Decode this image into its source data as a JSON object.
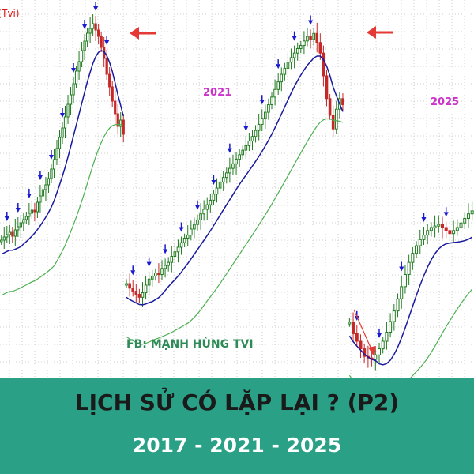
{
  "chart_data": [
    {
      "type": "candlestick",
      "period_label": "",
      "top_left_text": "g (Tvi)",
      "grid": true,
      "series": [
        {
          "name": "",
          "kind": "ohlc",
          "values": [
            296,
            300,
            303,
            306,
            301,
            309,
            313,
            318,
            322,
            326,
            330,
            334,
            332,
            344,
            352,
            360,
            366,
            374,
            386,
            398,
            412,
            426,
            438,
            452,
            468,
            480,
            494,
            510,
            522,
            536,
            548,
            558,
            564,
            570,
            562,
            554,
            540,
            526,
            506,
            490,
            472,
            456,
            440,
            448,
            430
          ]
        },
        {
          "name": "",
          "kind": "ma-short",
          "color": "#1a1aa0"
        },
        {
          "name": "",
          "kind": "ma-long",
          "color": "#4caf50"
        }
      ],
      "annotations": [
        "peak arrow",
        "red left arrow"
      ]
    },
    {
      "type": "candlestick",
      "period_label": "2021",
      "grid": true,
      "series": [
        {
          "name": "",
          "kind": "ohlc",
          "values": [
            226,
            220,
            216,
            212,
            208,
            214,
            224,
            232,
            236,
            240,
            238,
            246,
            250,
            254,
            262,
            268,
            274,
            280,
            286,
            290,
            298,
            304,
            310,
            318,
            324,
            330,
            336,
            344,
            352,
            360,
            366,
            372,
            378,
            384,
            390,
            396,
            402,
            408,
            414,
            420,
            428,
            436,
            444,
            452,
            462,
            472,
            482,
            492,
            502,
            510,
            518,
            524,
            530,
            536,
            540,
            546,
            552,
            548,
            556,
            544,
            530,
            500,
            470,
            448,
            430,
            456,
            470,
            462
          ]
        },
        {
          "name": "",
          "kind": "ma-short",
          "color": "#1a1aa0"
        },
        {
          "name": "",
          "kind": "ma-long",
          "color": "#4caf50"
        }
      ],
      "annotations": [
        "peak arrow",
        "red left arrow"
      ]
    },
    {
      "type": "candlestick",
      "period_label": "2025",
      "grid": true,
      "series": [
        {
          "name": "",
          "kind": "ohlc",
          "values": [
            175,
            160,
            150,
            140,
            130,
            128,
            126,
            132,
            140,
            150,
            162,
            176,
            190,
            206,
            222,
            238,
            254,
            266,
            276,
            284,
            290,
            296,
            300,
            302,
            304,
            300,
            296,
            292,
            296,
            300,
            306,
            312,
            318,
            322
          ]
        },
        {
          "name": "",
          "kind": "ma-short",
          "color": "#1a1aa0"
        },
        {
          "name": "",
          "kind": "ma-long",
          "color": "#4caf50"
        }
      ],
      "annotations": [
        "red diagonal arrow"
      ]
    }
  ],
  "labels": {
    "credit": "FB: MẠNH HÙNG TVI",
    "banner_title": "LỊCH SỬ CÓ LẶP LẠI ? (P2)",
    "banner_sub": "2017 - 2021 - 2025"
  },
  "colors": {
    "up": "#1f7a1f",
    "down": "#c62828",
    "ma_short": "#1a1aa0",
    "ma_long": "#4caf50",
    "arrow_blue": "#1a1ad0",
    "arrow_red": "#e53935",
    "banner": "#2aa186",
    "year": "#cc33cc"
  }
}
